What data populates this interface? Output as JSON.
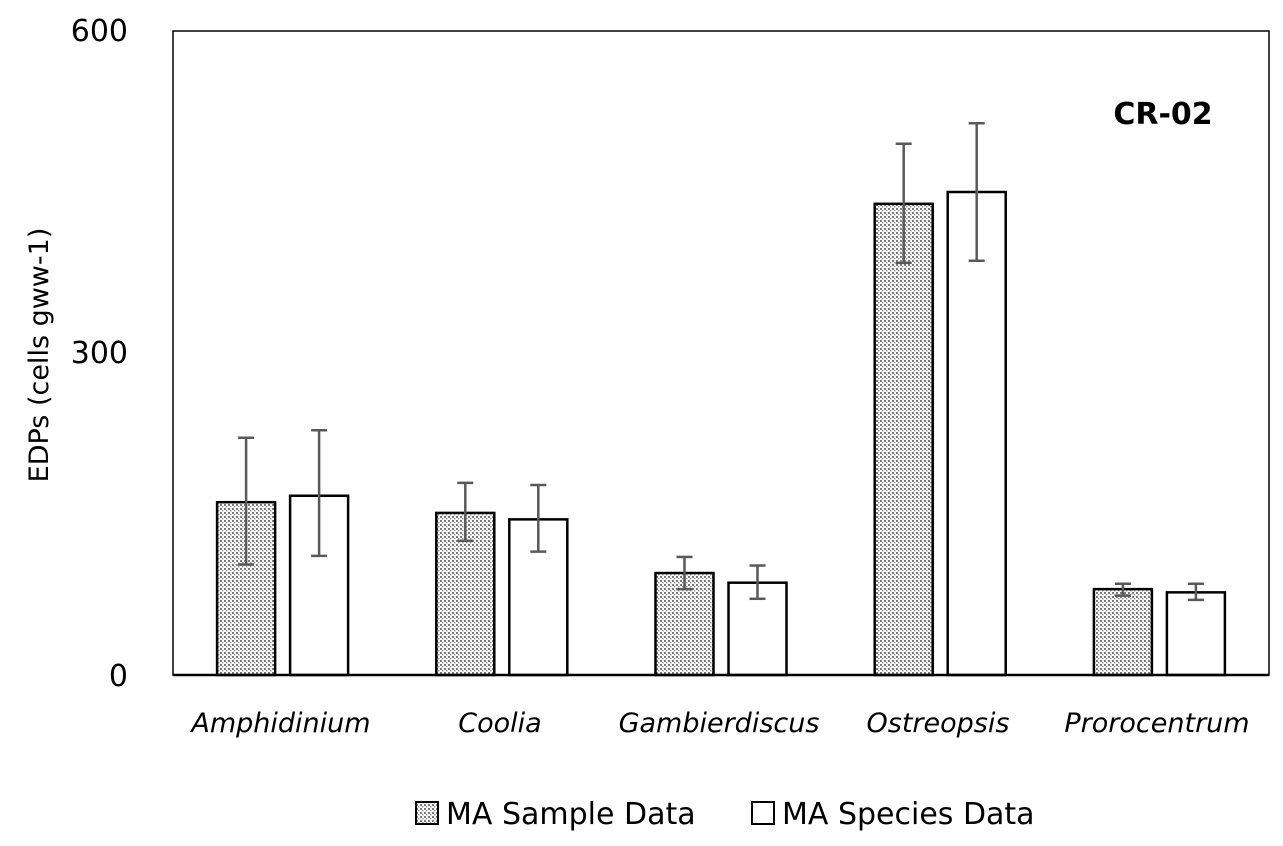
{
  "chart_data": {
    "type": "bar",
    "title": "",
    "panel_label": "CR-02",
    "xlabel": "",
    "ylabel": "EDPs (cells gww-1)",
    "ylim": [
      0,
      600
    ],
    "yticks": [
      0,
      300,
      600
    ],
    "grid": false,
    "legend_position": "bottom-center",
    "categories": [
      "Amphidinium",
      "Coolia",
      "Gambierdiscus",
      "Ostreopsis",
      "Prorocentrum"
    ],
    "series": [
      {
        "name": "MA Sample Data",
        "pattern": "dotted",
        "values": [
          161,
          151,
          95,
          439,
          80
        ],
        "err_low": [
          103,
          125,
          80,
          384,
          74
        ],
        "err_high": [
          221,
          179,
          110,
          495,
          85
        ]
      },
      {
        "name": "MA Species Data",
        "pattern": "white",
        "values": [
          167,
          145,
          86,
          450,
          77
        ],
        "err_low": [
          111,
          115,
          71,
          386,
          70
        ],
        "err_high": [
          228,
          177,
          102,
          514,
          85
        ]
      }
    ],
    "colors": {
      "axis": "#000000",
      "error_bar": "#595959",
      "bar_outline": "#000000",
      "white_fill": "#ffffff"
    }
  }
}
